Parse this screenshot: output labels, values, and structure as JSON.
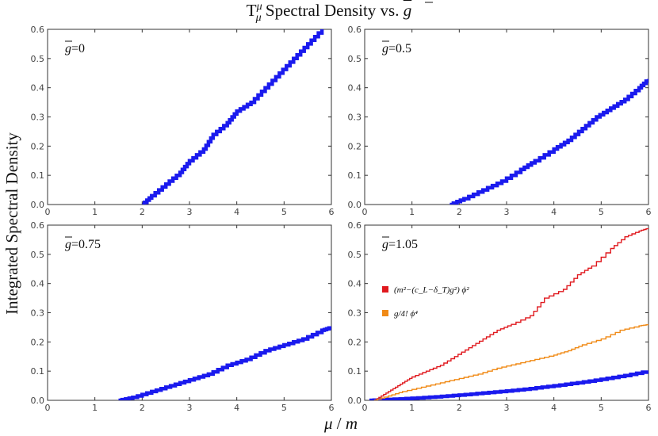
{
  "figure": {
    "title_main": "T",
    "title_sup": "μ",
    "title_sub": "μ",
    "title_rest": " Spectral Density vs. ",
    "title_g": "g",
    "ylabel": "Integrated Spectral Density",
    "xlabel_mu": "μ",
    "xlabel_rest": " / ",
    "xlabel_m": "m"
  },
  "colors": {
    "blue": "#1a1aee",
    "red": "#e0191e",
    "orange": "#f08a16",
    "frame": "#333333"
  },
  "chart_data": [
    {
      "type": "line",
      "panel_label_g": "g",
      "panel_label_value": "=0",
      "xlim": [
        0,
        6
      ],
      "ylim": [
        0,
        0.6
      ],
      "xticks": [
        0,
        1,
        2,
        3,
        4,
        5,
        6
      ],
      "yticks": [
        0.0,
        0.1,
        0.2,
        0.3,
        0.4,
        0.5,
        0.6
      ],
      "series": [
        {
          "color": "blue",
          "style": "thick-step",
          "x": [
            2.0,
            2.2,
            2.5,
            2.8,
            3.0,
            3.3,
            3.5,
            3.8,
            4.0,
            4.3,
            4.6,
            4.9,
            5.2,
            5.5,
            5.8
          ],
          "y": [
            0.0,
            0.03,
            0.07,
            0.11,
            0.15,
            0.19,
            0.24,
            0.28,
            0.32,
            0.35,
            0.4,
            0.45,
            0.5,
            0.55,
            0.6
          ]
        }
      ],
      "legend": []
    },
    {
      "type": "line",
      "panel_label_g": "g",
      "panel_label_value": "=0.5",
      "xlim": [
        0,
        6
      ],
      "ylim": [
        0,
        0.6
      ],
      "xticks": [
        0,
        1,
        2,
        3,
        4,
        5,
        6
      ],
      "yticks": [
        0.0,
        0.1,
        0.2,
        0.3,
        0.4,
        0.5,
        0.6
      ],
      "series": [
        {
          "color": "blue",
          "style": "thick-step",
          "x": [
            1.8,
            2.1,
            2.5,
            2.9,
            3.3,
            3.6,
            4.0,
            4.3,
            4.6,
            4.9,
            5.2,
            5.5,
            5.8,
            6.0
          ],
          "y": [
            0.0,
            0.02,
            0.05,
            0.08,
            0.12,
            0.15,
            0.19,
            0.22,
            0.26,
            0.3,
            0.33,
            0.36,
            0.4,
            0.43
          ]
        }
      ],
      "legend": []
    },
    {
      "type": "line",
      "panel_label_g": "g",
      "panel_label_value": "=0.75",
      "xlim": [
        0,
        6
      ],
      "ylim": [
        0,
        0.6
      ],
      "xticks": [
        0,
        1,
        2,
        3,
        4,
        5,
        6
      ],
      "yticks": [
        0.0,
        0.1,
        0.2,
        0.3,
        0.4,
        0.5,
        0.6
      ],
      "series": [
        {
          "color": "blue",
          "style": "thick-step",
          "x": [
            1.5,
            1.8,
            2.2,
            2.6,
            3.0,
            3.4,
            3.8,
            4.2,
            4.6,
            5.0,
            5.4,
            5.8,
            6.0
          ],
          "y": [
            0.0,
            0.01,
            0.03,
            0.05,
            0.07,
            0.09,
            0.12,
            0.14,
            0.17,
            0.19,
            0.21,
            0.24,
            0.25
          ]
        }
      ],
      "legend": []
    },
    {
      "type": "line",
      "panel_label_g": "g",
      "panel_label_value": "=1.05",
      "xlim": [
        0,
        6
      ],
      "ylim": [
        0,
        0.6
      ],
      "xticks": [
        0,
        1,
        2,
        3,
        4,
        5,
        6
      ],
      "yticks": [
        0.0,
        0.1,
        0.2,
        0.3,
        0.4,
        0.5,
        0.6
      ],
      "series": [
        {
          "color": "blue",
          "style": "thick-step",
          "x": [
            0.1,
            0.5,
            1.0,
            1.5,
            2.0,
            2.5,
            3.0,
            3.5,
            4.0,
            4.5,
            5.0,
            5.5,
            6.0
          ],
          "y": [
            0.0,
            0.003,
            0.007,
            0.012,
            0.018,
            0.025,
            0.032,
            0.04,
            0.05,
            0.06,
            0.072,
            0.085,
            0.1
          ]
        },
        {
          "color": "red",
          "style": "thin-step",
          "x": [
            0.2,
            0.4,
            0.6,
            0.8,
            1.0,
            1.3,
            1.6,
            1.9,
            2.2,
            2.5,
            2.8,
            3.1,
            3.5,
            3.8,
            4.2,
            4.5,
            4.8,
            5.2,
            5.5,
            5.8,
            6.0
          ],
          "y": [
            0.0,
            0.02,
            0.04,
            0.06,
            0.08,
            0.1,
            0.12,
            0.15,
            0.18,
            0.21,
            0.24,
            0.26,
            0.29,
            0.35,
            0.38,
            0.43,
            0.46,
            0.52,
            0.56,
            0.58,
            0.59
          ]
        },
        {
          "color": "orange",
          "style": "thin-step",
          "x": [
            0.2,
            0.5,
            0.8,
            1.2,
            1.6,
            2.0,
            2.4,
            2.8,
            3.2,
            3.6,
            4.0,
            4.3,
            4.6,
            5.0,
            5.4,
            5.8,
            6.0
          ],
          "y": [
            0.0,
            0.015,
            0.03,
            0.045,
            0.06,
            0.075,
            0.09,
            0.11,
            0.125,
            0.14,
            0.155,
            0.17,
            0.19,
            0.21,
            0.24,
            0.255,
            0.26
          ]
        }
      ],
      "legend": [
        {
          "color": "red",
          "text": "(m²−(c_L−δ_T)g²) ϕ²"
        },
        {
          "color": "orange",
          "text": "g/4! ϕ⁴"
        }
      ]
    }
  ]
}
